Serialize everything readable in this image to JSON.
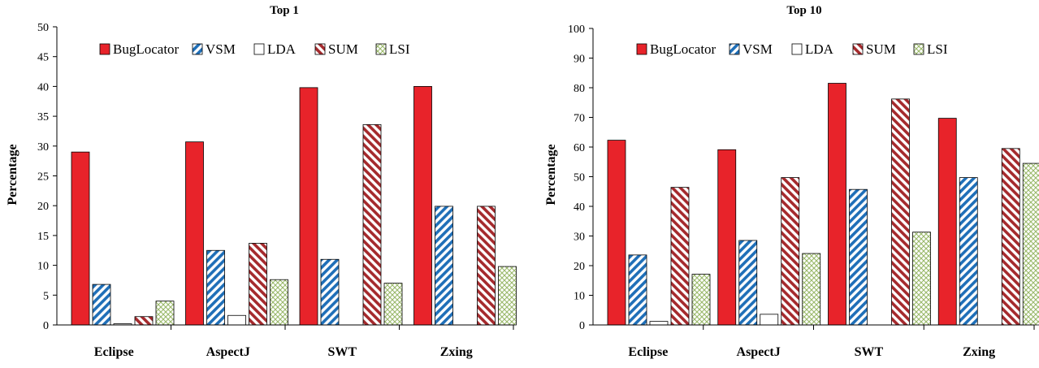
{
  "colors": {
    "BugLocator": "#e8232a",
    "VSM": "#1f6fb8",
    "LDA": "#ffffff",
    "SUM": "#a52a2d",
    "LSI": "#9ab86a",
    "axis": "#000000"
  },
  "chart_data": [
    {
      "type": "bar",
      "title": "Top 1",
      "ylabel": "Percentage",
      "xlabel": "",
      "ylim": [
        0,
        50
      ],
      "ytick_step": 5,
      "legend_position": "top",
      "grid": false,
      "categories": [
        "Eclipse",
        "AspectJ",
        "SWT",
        "Zxing"
      ],
      "series": [
        {
          "name": "BugLocator",
          "pattern": "solid",
          "values": [
            29.0,
            30.7,
            39.8,
            40.0
          ]
        },
        {
          "name": "VSM",
          "pattern": "diagonal-stripes",
          "values": [
            6.8,
            12.5,
            11.0,
            19.9
          ]
        },
        {
          "name": "LDA",
          "pattern": "empty",
          "values": [
            0.2,
            1.6,
            0.0,
            0.0
          ]
        },
        {
          "name": "SUM",
          "pattern": "diagonal-stripes",
          "values": [
            1.4,
            13.7,
            33.6,
            19.9
          ]
        },
        {
          "name": "LSI",
          "pattern": "crosshatch",
          "values": [
            4.0,
            7.6,
            7.0,
            9.8
          ]
        }
      ]
    },
    {
      "type": "bar",
      "title": "Top 10",
      "ylabel": "Percentage",
      "xlabel": "",
      "ylim": [
        0,
        100
      ],
      "ytick_step": 10,
      "legend_position": "top",
      "grid": false,
      "categories": [
        "Eclipse",
        "AspectJ",
        "SWT",
        "Zxing"
      ],
      "series": [
        {
          "name": "BugLocator",
          "pattern": "solid",
          "values": [
            62.3,
            59.1,
            81.5,
            69.7
          ]
        },
        {
          "name": "VSM",
          "pattern": "diagonal-stripes",
          "values": [
            23.6,
            28.5,
            45.7,
            49.7
          ]
        },
        {
          "name": "LDA",
          "pattern": "empty",
          "values": [
            1.2,
            3.6,
            0.0,
            0.0
          ]
        },
        {
          "name": "SUM",
          "pattern": "diagonal-stripes",
          "values": [
            46.4,
            49.7,
            76.2,
            59.5
          ]
        },
        {
          "name": "LSI",
          "pattern": "crosshatch",
          "values": [
            17.1,
            24.1,
            31.3,
            54.5
          ]
        }
      ]
    }
  ]
}
